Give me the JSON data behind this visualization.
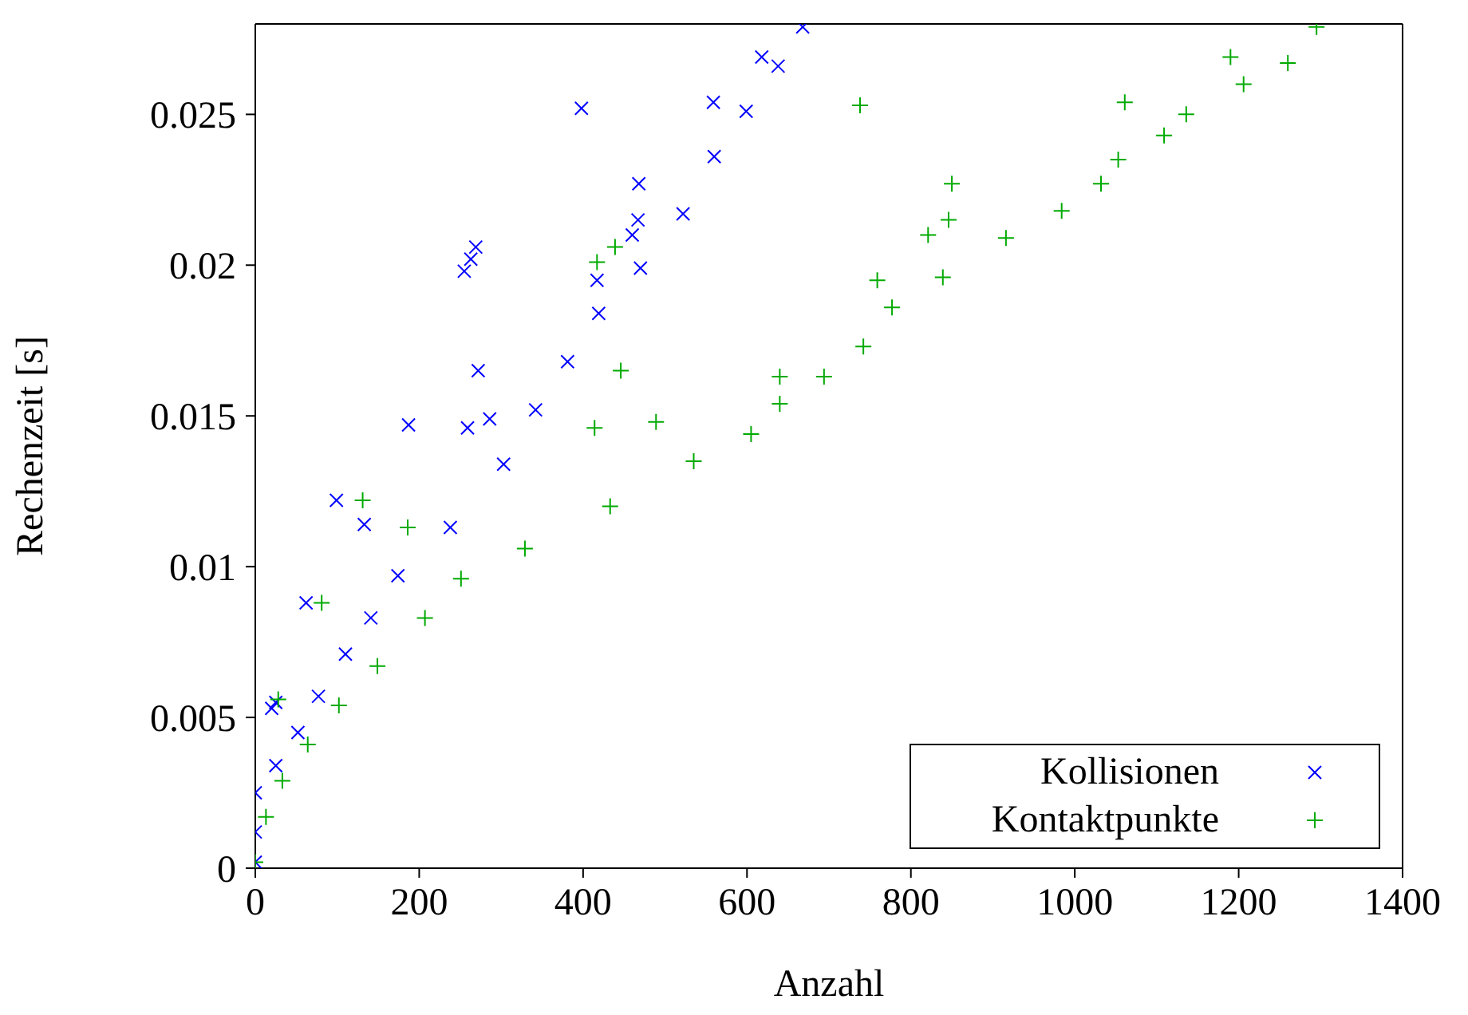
{
  "chart_data": {
    "type": "scatter",
    "xlabel": "Anzahl",
    "ylabel": "Rechenzeit [s]",
    "xlim": [
      0,
      1400
    ],
    "xticks": [
      0,
      200,
      400,
      600,
      800,
      1000,
      1200,
      1400
    ],
    "ylim": [
      0,
      0.028
    ],
    "yticks": [
      0,
      0.005,
      0.01,
      0.015,
      0.02,
      0.025
    ],
    "grid": false,
    "legend": "bottom right",
    "series": [
      {
        "name": "Kollisionen",
        "color": "#0000ff",
        "marker": "x",
        "x": [
          0,
          0,
          0,
          25,
          52,
          77,
          110,
          141,
          174,
          238,
          303,
          342,
          381,
          419,
          470,
          522,
          560,
          599,
          638,
          668,
          62,
          99,
          133,
          187,
          259,
          272,
          255,
          263,
          269,
          286,
          398,
          468,
          467,
          460,
          417,
          559,
          618,
          25,
          20
        ],
        "values": [
          0.0002,
          0.0012,
          0.0025,
          0.0034,
          0.0045,
          0.0057,
          0.0071,
          0.0083,
          0.0097,
          0.0113,
          0.0134,
          0.0152,
          0.0168,
          0.0184,
          0.0199,
          0.0217,
          0.0236,
          0.0251,
          0.0266,
          0.0279,
          0.0088,
          0.0122,
          0.0114,
          0.0147,
          0.0146,
          0.0165,
          0.0198,
          0.0202,
          0.0206,
          0.0149,
          0.0252,
          0.0227,
          0.0215,
          0.021,
          0.0195,
          0.0254,
          0.0269,
          0.0055,
          0.0053
        ]
      },
      {
        "name": "Kontaktpunkte",
        "color": "#00aa00",
        "marker": "cross",
        "x": [
          0,
          13,
          33,
          64,
          102,
          149,
          207,
          251,
          329,
          433,
          535,
          605,
          640,
          694,
          742,
          777,
          839,
          916,
          984,
          1032,
          1053,
          1109,
          1136,
          1206,
          1260,
          1295,
          738,
          1061,
          850,
          846,
          821,
          759,
          640,
          446,
          414,
          489,
          1190,
          417,
          439,
          131,
          81,
          186,
          28
        ],
        "values": [
          0.0002,
          0.0017,
          0.0029,
          0.0041,
          0.0054,
          0.0067,
          0.0083,
          0.0096,
          0.0106,
          0.012,
          0.0135,
          0.0144,
          0.0154,
          0.0163,
          0.0173,
          0.0186,
          0.0196,
          0.0209,
          0.0218,
          0.0227,
          0.0235,
          0.0243,
          0.025,
          0.026,
          0.0267,
          0.0279,
          0.0253,
          0.0254,
          0.0227,
          0.0215,
          0.021,
          0.0195,
          0.0163,
          0.0165,
          0.0146,
          0.0148,
          0.0269,
          0.0201,
          0.0206,
          0.0122,
          0.0088,
          0.0113,
          0.0056
        ]
      }
    ]
  }
}
